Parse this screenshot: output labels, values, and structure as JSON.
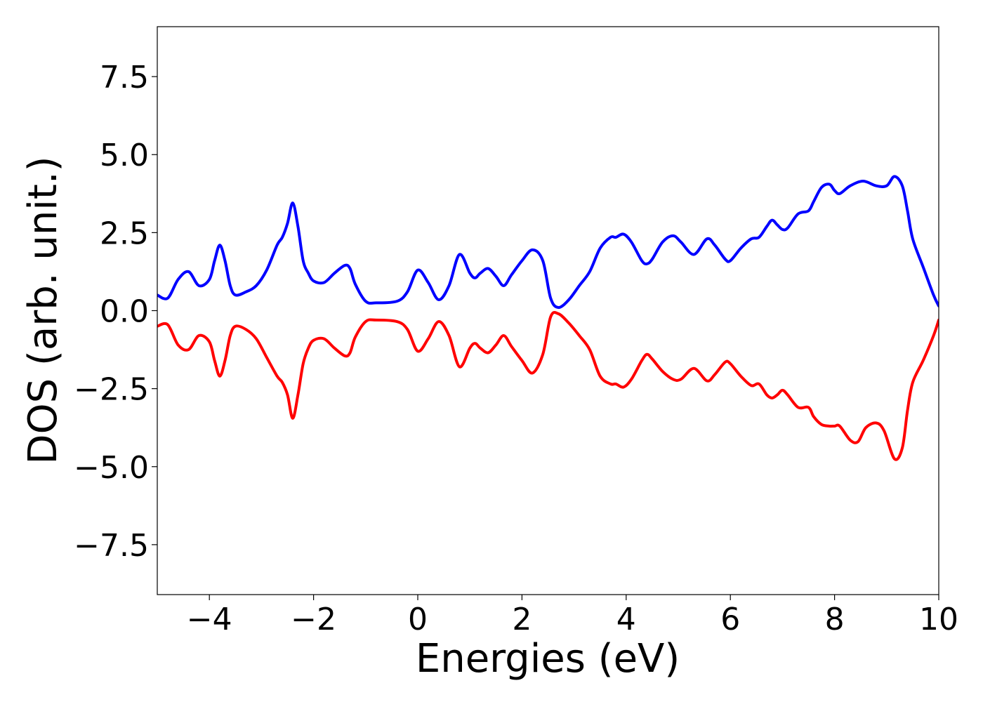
{
  "chart_data": {
    "type": "line",
    "title": "",
    "xlabel": "Energies (eV)",
    "ylabel": "DOS (arb. unit.)",
    "xlim": [
      -5,
      10
    ],
    "ylim": [
      -9.1,
      9.1
    ],
    "grid": false,
    "legend": "none",
    "x_ticks": [
      -4,
      -2,
      0,
      2,
      4,
      6,
      8,
      10
    ],
    "x_tick_labels": [
      "−4",
      "−2",
      "0",
      "2",
      "4",
      "6",
      "8",
      "10"
    ],
    "y_ticks": [
      7.5,
      5.0,
      2.5,
      0.0,
      -2.5,
      -5.0,
      -7.5
    ],
    "y_tick_labels": [
      "7.5",
      "5.0",
      "2.5",
      "0.0",
      "−2.5",
      "−5.0",
      "−7.5"
    ],
    "series": [
      {
        "color": "#0000ff",
        "x": [
          -5.0,
          -4.8,
          -4.6,
          -4.4,
          -4.2,
          -4.0,
          -3.9,
          -3.8,
          -3.7,
          -3.6,
          -3.5,
          -3.3,
          -3.1,
          -2.9,
          -2.7,
          -2.6,
          -2.5,
          -2.4,
          -2.3,
          -2.2,
          -2.1,
          -2.0,
          -1.8,
          -1.6,
          -1.4,
          -1.3,
          -1.2,
          -1.0,
          -0.8,
          -0.4,
          -0.2,
          0.0,
          0.2,
          0.4,
          0.6,
          0.8,
          1.0,
          1.1,
          1.2,
          1.35,
          1.5,
          1.65,
          1.8,
          2.0,
          2.2,
          2.4,
          2.55,
          2.7,
          2.9,
          3.1,
          3.3,
          3.5,
          3.7,
          3.8,
          3.95,
          4.1,
          4.3,
          4.4,
          4.5,
          4.7,
          4.9,
          5.05,
          5.3,
          5.55,
          5.7,
          5.9,
          6.0,
          6.2,
          6.4,
          6.55,
          6.7,
          6.8,
          6.9,
          7.0,
          7.1,
          7.3,
          7.5,
          7.6,
          7.75,
          7.9,
          8.0,
          8.1,
          8.3,
          8.55,
          8.8,
          9.0,
          9.15,
          9.3,
          9.4,
          9.5,
          9.7,
          9.9,
          10.0
        ],
        "y": [
          0.5,
          0.4,
          1.0,
          1.25,
          0.8,
          1.0,
          1.6,
          2.1,
          1.6,
          0.8,
          0.5,
          0.6,
          0.8,
          1.3,
          2.1,
          2.35,
          2.8,
          3.45,
          2.7,
          1.6,
          1.2,
          0.95,
          0.9,
          1.2,
          1.45,
          1.35,
          0.85,
          0.3,
          0.25,
          0.3,
          0.6,
          1.3,
          0.9,
          0.35,
          0.8,
          1.8,
          1.2,
          1.05,
          1.2,
          1.35,
          1.1,
          0.8,
          1.15,
          1.6,
          1.95,
          1.6,
          0.4,
          0.1,
          0.35,
          0.8,
          1.25,
          2.0,
          2.35,
          2.35,
          2.45,
          2.2,
          1.6,
          1.5,
          1.65,
          2.2,
          2.4,
          2.2,
          1.8,
          2.3,
          2.1,
          1.65,
          1.6,
          2.0,
          2.3,
          2.35,
          2.7,
          2.9,
          2.75,
          2.6,
          2.65,
          3.1,
          3.2,
          3.5,
          3.95,
          4.05,
          3.85,
          3.75,
          4.0,
          4.15,
          4.0,
          4.0,
          4.3,
          4.0,
          3.2,
          2.3,
          1.4,
          0.5,
          0.15
        ]
      },
      {
        "color": "#ff0000",
        "x": [
          -5.0,
          -4.8,
          -4.6,
          -4.4,
          -4.2,
          -4.0,
          -3.9,
          -3.8,
          -3.7,
          -3.6,
          -3.5,
          -3.3,
          -3.1,
          -2.9,
          -2.7,
          -2.6,
          -2.5,
          -2.4,
          -2.3,
          -2.2,
          -2.1,
          -2.0,
          -1.8,
          -1.6,
          -1.4,
          -1.3,
          -1.2,
          -1.0,
          -0.8,
          -0.4,
          -0.2,
          0.0,
          0.2,
          0.4,
          0.6,
          0.8,
          1.0,
          1.1,
          1.2,
          1.35,
          1.5,
          1.65,
          1.8,
          2.0,
          2.2,
          2.4,
          2.55,
          2.7,
          2.9,
          3.1,
          3.3,
          3.5,
          3.7,
          3.8,
          3.95,
          4.1,
          4.3,
          4.4,
          4.5,
          4.7,
          4.9,
          5.05,
          5.3,
          5.55,
          5.7,
          5.9,
          6.0,
          6.2,
          6.4,
          6.55,
          6.7,
          6.8,
          6.9,
          7.0,
          7.1,
          7.3,
          7.5,
          7.6,
          7.75,
          7.9,
          8.0,
          8.1,
          8.3,
          8.45,
          8.6,
          8.8,
          8.95,
          9.15,
          9.3,
          9.4,
          9.5,
          9.7,
          9.9,
          10.0
        ],
        "y": [
          -0.5,
          -0.45,
          -1.1,
          -1.25,
          -0.8,
          -1.0,
          -1.6,
          -2.1,
          -1.6,
          -0.8,
          -0.5,
          -0.6,
          -0.9,
          -1.5,
          -2.1,
          -2.3,
          -2.7,
          -3.45,
          -2.7,
          -1.7,
          -1.2,
          -0.95,
          -0.9,
          -1.2,
          -1.45,
          -1.35,
          -0.85,
          -0.35,
          -0.3,
          -0.35,
          -0.6,
          -1.3,
          -0.9,
          -0.35,
          -0.8,
          -1.8,
          -1.2,
          -1.05,
          -1.2,
          -1.35,
          -1.1,
          -0.8,
          -1.15,
          -1.6,
          -2.0,
          -1.4,
          -0.2,
          -0.1,
          -0.4,
          -0.8,
          -1.25,
          -2.1,
          -2.35,
          -2.35,
          -2.45,
          -2.2,
          -1.6,
          -1.4,
          -1.55,
          -1.95,
          -2.2,
          -2.2,
          -1.85,
          -2.25,
          -2.05,
          -1.65,
          -1.7,
          -2.1,
          -2.4,
          -2.35,
          -2.7,
          -2.8,
          -2.7,
          -2.55,
          -2.7,
          -3.1,
          -3.1,
          -3.4,
          -3.65,
          -3.7,
          -3.7,
          -3.7,
          -4.15,
          -4.2,
          -3.75,
          -3.6,
          -3.85,
          -4.75,
          -4.4,
          -3.2,
          -2.3,
          -1.6,
          -0.8,
          -0.3
        ]
      }
    ]
  }
}
